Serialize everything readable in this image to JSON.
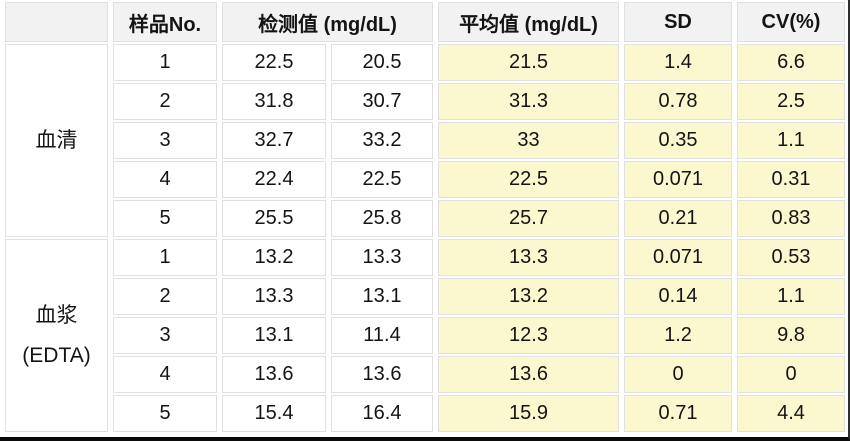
{
  "colors": {
    "header_bg": "#f2f2f2",
    "cell_bg": "#ffffff",
    "highlight_bg": "#fbf8d0",
    "cell_border": "#e0e0e0",
    "text": "#141414",
    "outer_bottom": "#0a0a0a",
    "outer_right": "#2e2e2e"
  },
  "table": {
    "headers": {
      "group": "",
      "sample_no": "样品No.",
      "measured": "检测值 (mg/dL)",
      "mean": "平均值 (mg/dL)",
      "sd": "SD",
      "cv": "CV(%)"
    },
    "groups": [
      {
        "label": "血清",
        "rows": [
          {
            "no": "1",
            "value1": "22.5",
            "value2": "20.5",
            "mean": "21.5",
            "sd": "1.4",
            "cv": "6.6"
          },
          {
            "no": "2",
            "value1": "31.8",
            "value2": "30.7",
            "mean": "31.3",
            "sd": "0.78",
            "cv": "2.5"
          },
          {
            "no": "3",
            "value1": "32.7",
            "value2": "33.2",
            "mean": "33",
            "sd": "0.35",
            "cv": "1.1"
          },
          {
            "no": "4",
            "value1": "22.4",
            "value2": "22.5",
            "mean": "22.5",
            "sd": "0.071",
            "cv": "0.31"
          },
          {
            "no": "5",
            "value1": "25.5",
            "value2": "25.8",
            "mean": "25.7",
            "sd": "0.21",
            "cv": "0.83"
          }
        ]
      },
      {
        "label": "血浆\n(EDTA)",
        "rows": [
          {
            "no": "1",
            "value1": "13.2",
            "value2": "13.3",
            "mean": "13.3",
            "sd": "0.071",
            "cv": "0.53"
          },
          {
            "no": "2",
            "value1": "13.3",
            "value2": "13.1",
            "mean": "13.2",
            "sd": "0.14",
            "cv": "1.1"
          },
          {
            "no": "3",
            "value1": "13.1",
            "value2": "11.4",
            "mean": "12.3",
            "sd": "1.2",
            "cv": "9.8"
          },
          {
            "no": "4",
            "value1": "13.6",
            "value2": "13.6",
            "mean": "13.6",
            "sd": "0",
            "cv": "0"
          },
          {
            "no": "5",
            "value1": "15.4",
            "value2": "16.4",
            "mean": "15.9",
            "sd": "0.71",
            "cv": "4.4"
          }
        ]
      }
    ]
  },
  "chart_data": {
    "type": "table",
    "title": "",
    "columns": [
      "",
      "样品No.",
      "检测值 (mg/dL)",
      "检测值 (mg/dL)",
      "平均值 (mg/dL)",
      "SD",
      "CV(%)"
    ],
    "rows": [
      [
        "血清",
        "1",
        "22.5",
        "20.5",
        "21.5",
        "1.4",
        "6.6"
      ],
      [
        "血清",
        "2",
        "31.8",
        "30.7",
        "31.3",
        "0.78",
        "2.5"
      ],
      [
        "血清",
        "3",
        "32.7",
        "33.2",
        "33",
        "0.35",
        "1.1"
      ],
      [
        "血清",
        "4",
        "22.4",
        "22.5",
        "22.5",
        "0.071",
        "0.31"
      ],
      [
        "血清",
        "5",
        "25.5",
        "25.8",
        "25.7",
        "0.21",
        "0.83"
      ],
      [
        "血浆(EDTA)",
        "1",
        "13.2",
        "13.3",
        "13.3",
        "0.071",
        "0.53"
      ],
      [
        "血浆(EDTA)",
        "2",
        "13.3",
        "13.1",
        "13.2",
        "0.14",
        "1.1"
      ],
      [
        "血浆(EDTA)",
        "3",
        "13.1",
        "11.4",
        "12.3",
        "1.2",
        "9.8"
      ],
      [
        "血浆(EDTA)",
        "4",
        "13.6",
        "13.6",
        "13.6",
        "0",
        "0"
      ],
      [
        "血浆(EDTA)",
        "5",
        "15.4",
        "16.4",
        "15.9",
        "0.71",
        "4.4"
      ]
    ],
    "layout": {
      "header_background": "#f2f2f2",
      "highlighted_columns": [
        "平均值 (mg/dL)",
        "SD",
        "CV(%)"
      ],
      "highlight_background": "#fbf8d0",
      "merged_row_groups": [
        "血清",
        "血浆(EDTA)"
      ]
    }
  }
}
